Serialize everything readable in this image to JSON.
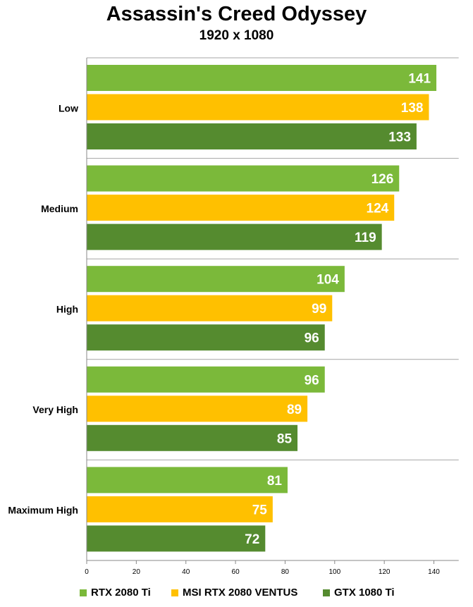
{
  "colors": {
    "series": [
      "#7bb93a",
      "#ffc000",
      "#558b2f"
    ],
    "grid": "#a6a6a6",
    "axis": "#888888",
    "value_label": "#ffffff"
  },
  "chart_data": {
    "type": "bar",
    "orientation": "horizontal",
    "title": "Assassin's Creed Odyssey",
    "subtitle": "1920 x 1080",
    "categories": [
      "Low",
      "Medium",
      "High",
      "Very High",
      "Maximum High"
    ],
    "series": [
      {
        "name": "RTX 2080 Ti",
        "values": [
          141,
          126,
          104,
          96,
          81
        ]
      },
      {
        "name": "MSI RTX 2080 VENTUS",
        "values": [
          138,
          124,
          99,
          89,
          75
        ]
      },
      {
        "name": "GTX 1080 Ti",
        "values": [
          133,
          119,
          96,
          85,
          72
        ]
      }
    ],
    "xlim": [
      0,
      150
    ],
    "x_ticks": [
      0,
      20,
      40,
      60,
      80,
      100,
      120,
      140
    ],
    "grid": true,
    "legend_position": "bottom"
  }
}
